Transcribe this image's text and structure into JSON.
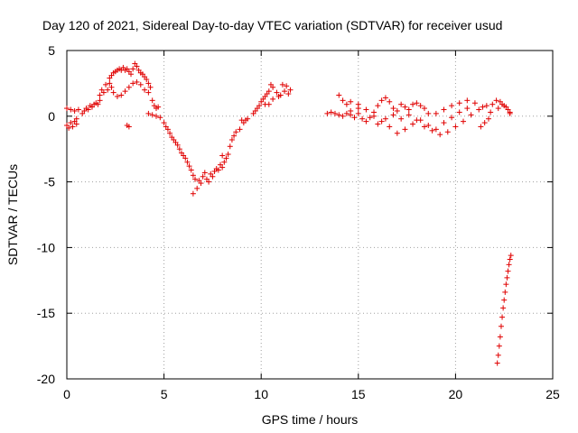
{
  "chart_data": {
    "type": "scatter",
    "title": "Day 120 of 2021, Sidereal Day-to-day VTEC variation (SDTVAR) for receiver usud",
    "xlabel": "GPS time / hours",
    "ylabel": "SDTVAR / TECUs",
    "xlim": [
      0,
      25
    ],
    "ylim": [
      -20,
      5
    ],
    "xticks": [
      0,
      5,
      10,
      15,
      20,
      25
    ],
    "yticks": [
      -20,
      -15,
      -10,
      -5,
      0,
      5
    ],
    "grid": true,
    "marker": "+",
    "color": "#e00000",
    "series": [
      {
        "name": "SDTVAR",
        "points": [
          [
            0.0,
            -0.7
          ],
          [
            0.1,
            -0.9
          ],
          [
            0.2,
            -0.5
          ],
          [
            0.3,
            -0.8
          ],
          [
            0.4,
            -0.4
          ],
          [
            0.5,
            -0.6
          ],
          [
            0.0,
            0.6
          ],
          [
            0.2,
            0.5
          ],
          [
            0.4,
            0.4
          ],
          [
            0.6,
            0.5
          ],
          [
            0.5,
            -0.2
          ],
          [
            0.8,
            0.2
          ],
          [
            0.9,
            0.4
          ],
          [
            1.0,
            0.6
          ],
          [
            1.1,
            0.5
          ],
          [
            1.2,
            0.8
          ],
          [
            1.3,
            0.7
          ],
          [
            1.4,
            0.9
          ],
          [
            1.5,
            1.0
          ],
          [
            1.6,
            0.9
          ],
          [
            1.7,
            1.2
          ],
          [
            1.7,
            1.6
          ],
          [
            1.8,
            2.0
          ],
          [
            1.9,
            1.8
          ],
          [
            2.0,
            2.4
          ],
          [
            2.1,
            2.0
          ],
          [
            2.2,
            2.5
          ],
          [
            2.3,
            2.2
          ],
          [
            2.2,
            2.9
          ],
          [
            2.3,
            3.1
          ],
          [
            2.4,
            3.3
          ],
          [
            2.5,
            3.4
          ],
          [
            2.6,
            3.5
          ],
          [
            2.7,
            3.6
          ],
          [
            2.8,
            3.5
          ],
          [
            2.9,
            3.7
          ],
          [
            3.0,
            3.5
          ],
          [
            3.1,
            3.6
          ],
          [
            3.2,
            3.4
          ],
          [
            2.4,
            1.8
          ],
          [
            2.6,
            1.5
          ],
          [
            2.8,
            1.6
          ],
          [
            3.0,
            1.9
          ],
          [
            3.2,
            2.2
          ],
          [
            3.4,
            2.5
          ],
          [
            3.3,
            3.2
          ],
          [
            3.4,
            3.6
          ],
          [
            3.5,
            4.0
          ],
          [
            3.6,
            3.8
          ],
          [
            3.7,
            3.5
          ],
          [
            3.8,
            3.3
          ],
          [
            3.9,
            3.2
          ],
          [
            4.0,
            3.0
          ],
          [
            4.1,
            2.8
          ],
          [
            4.2,
            2.5
          ],
          [
            4.3,
            2.2
          ],
          [
            3.6,
            2.6
          ],
          [
            3.8,
            2.4
          ],
          [
            4.0,
            2.0
          ],
          [
            4.2,
            1.8
          ],
          [
            4.4,
            1.2
          ],
          [
            4.5,
            0.8
          ],
          [
            4.6,
            0.6
          ],
          [
            4.7,
            0.7
          ],
          [
            3.1,
            -0.7
          ],
          [
            3.2,
            -0.8
          ],
          [
            4.2,
            0.2
          ],
          [
            4.4,
            0.1
          ],
          [
            4.6,
            0.0
          ],
          [
            4.8,
            -0.1
          ],
          [
            5.0,
            -0.5
          ],
          [
            5.1,
            -0.8
          ],
          [
            5.2,
            -1.0
          ],
          [
            5.3,
            -1.3
          ],
          [
            5.4,
            -1.6
          ],
          [
            5.5,
            -1.8
          ],
          [
            5.6,
            -2.0
          ],
          [
            5.7,
            -2.2
          ],
          [
            5.8,
            -2.5
          ],
          [
            5.9,
            -2.8
          ],
          [
            6.0,
            -3.0
          ],
          [
            6.1,
            -3.2
          ],
          [
            6.2,
            -3.5
          ],
          [
            6.3,
            -3.8
          ],
          [
            6.4,
            -4.1
          ],
          [
            6.5,
            -4.5
          ],
          [
            6.6,
            -4.8
          ],
          [
            6.5,
            -5.9
          ],
          [
            6.7,
            -5.5
          ],
          [
            6.8,
            -4.9
          ],
          [
            6.9,
            -5.1
          ],
          [
            7.0,
            -4.6
          ],
          [
            7.1,
            -4.3
          ],
          [
            7.2,
            -4.8
          ],
          [
            7.3,
            -5.0
          ],
          [
            7.4,
            -4.4
          ],
          [
            7.5,
            -4.6
          ],
          [
            7.6,
            -4.2
          ],
          [
            7.7,
            -4.0
          ],
          [
            7.8,
            -4.1
          ],
          [
            7.9,
            -3.7
          ],
          [
            8.0,
            -3.0
          ],
          [
            8.0,
            -3.9
          ],
          [
            8.1,
            -3.5
          ],
          [
            8.2,
            -3.2
          ],
          [
            8.3,
            -2.9
          ],
          [
            8.4,
            -2.3
          ],
          [
            8.5,
            -1.8
          ],
          [
            8.6,
            -1.5
          ],
          [
            8.7,
            -1.2
          ],
          [
            8.9,
            -1.0
          ],
          [
            9.1,
            -0.5
          ],
          [
            9.2,
            -0.3
          ],
          [
            9.0,
            -0.3
          ],
          [
            9.3,
            -0.2
          ],
          [
            9.6,
            0.2
          ],
          [
            9.7,
            0.4
          ],
          [
            9.8,
            0.6
          ],
          [
            9.9,
            0.8
          ],
          [
            10.0,
            1.1
          ],
          [
            10.1,
            1.3
          ],
          [
            10.2,
            1.5
          ],
          [
            10.3,
            1.7
          ],
          [
            10.4,
            1.9
          ],
          [
            10.6,
            2.2
          ],
          [
            10.8,
            1.8
          ],
          [
            11.0,
            1.6
          ],
          [
            11.2,
            1.9
          ],
          [
            11.4,
            1.7
          ],
          [
            10.6,
            1.3
          ],
          [
            10.9,
            1.5
          ],
          [
            11.3,
            2.3
          ],
          [
            11.5,
            2.0
          ],
          [
            10.4,
            0.9
          ],
          [
            10.2,
            0.9
          ],
          [
            10.5,
            2.4
          ],
          [
            11.1,
            2.4
          ],
          [
            13.4,
            0.2
          ],
          [
            13.6,
            0.3
          ],
          [
            13.8,
            0.2
          ],
          [
            14.0,
            0.1
          ],
          [
            14.2,
            0.0
          ],
          [
            14.4,
            0.2
          ],
          [
            14.6,
            0.1
          ],
          [
            14.8,
            -0.1
          ],
          [
            15.0,
            0.2
          ],
          [
            15.2,
            -0.2
          ],
          [
            15.4,
            -0.4
          ],
          [
            15.6,
            -0.1
          ],
          [
            15.8,
            0.3
          ],
          [
            16.0,
            0.8
          ],
          [
            16.2,
            1.2
          ],
          [
            16.4,
            1.4
          ],
          [
            16.6,
            1.1
          ],
          [
            16.8,
            0.6
          ],
          [
            17.0,
            0.4
          ],
          [
            17.2,
            0.9
          ],
          [
            17.4,
            0.7
          ],
          [
            17.6,
            0.5
          ],
          [
            17.8,
            0.9
          ],
          [
            18.0,
            1.0
          ],
          [
            18.2,
            0.8
          ],
          [
            18.4,
            0.6
          ],
          [
            18.6,
            0.2
          ],
          [
            14.6,
            0.4
          ],
          [
            15.0,
            0.6
          ],
          [
            15.4,
            0.5
          ],
          [
            15.8,
            0.0
          ],
          [
            16.2,
            -0.4
          ],
          [
            16.6,
            -0.8
          ],
          [
            17.0,
            -1.3
          ],
          [
            17.4,
            -1.0
          ],
          [
            17.8,
            -0.6
          ],
          [
            18.2,
            -0.3
          ],
          [
            18.6,
            -0.7
          ],
          [
            19.0,
            -1.0
          ],
          [
            19.4,
            -0.5
          ],
          [
            19.8,
            -0.1
          ],
          [
            20.2,
            0.3
          ],
          [
            20.6,
            0.6
          ],
          [
            16.0,
            -0.6
          ],
          [
            16.4,
            -0.2
          ],
          [
            16.8,
            0.1
          ],
          [
            17.2,
            -0.2
          ],
          [
            17.6,
            0.1
          ],
          [
            18.0,
            -0.3
          ],
          [
            18.4,
            -0.8
          ],
          [
            18.8,
            -1.1
          ],
          [
            19.2,
            -1.4
          ],
          [
            19.6,
            -1.2
          ],
          [
            20.0,
            -0.8
          ],
          [
            20.4,
            -0.4
          ],
          [
            20.8,
            0.1
          ],
          [
            21.2,
            0.5
          ],
          [
            21.6,
            0.8
          ],
          [
            14.0,
            1.6
          ],
          [
            14.2,
            1.2
          ],
          [
            14.4,
            0.9
          ],
          [
            14.6,
            1.1
          ],
          [
            15.0,
            0.9
          ],
          [
            19.0,
            0.2
          ],
          [
            19.4,
            0.5
          ],
          [
            19.8,
            0.8
          ],
          [
            20.2,
            1.0
          ],
          [
            20.6,
            1.2
          ],
          [
            21.0,
            1.0
          ],
          [
            21.4,
            0.7
          ],
          [
            21.8,
            0.3
          ],
          [
            22.2,
            0.6
          ],
          [
            22.4,
            0.9
          ],
          [
            22.6,
            0.7
          ],
          [
            22.8,
            0.3
          ],
          [
            21.3,
            -0.8
          ],
          [
            21.5,
            -0.5
          ],
          [
            21.7,
            -0.2
          ],
          [
            21.9,
            0.9
          ],
          [
            22.1,
            1.2
          ],
          [
            22.3,
            1.1
          ],
          [
            22.5,
            0.8
          ],
          [
            22.7,
            0.5
          ],
          [
            22.8,
            0.2
          ],
          [
            22.15,
            -18.8
          ],
          [
            22.2,
            -18.2
          ],
          [
            22.25,
            -17.5
          ],
          [
            22.3,
            -16.8
          ],
          [
            22.35,
            -16.0
          ],
          [
            22.4,
            -15.3
          ],
          [
            22.45,
            -14.6
          ],
          [
            22.5,
            -14.0
          ],
          [
            22.55,
            -13.4
          ],
          [
            22.6,
            -12.8
          ],
          [
            22.65,
            -12.3
          ],
          [
            22.7,
            -11.8
          ],
          [
            22.75,
            -11.3
          ],
          [
            22.8,
            -10.9
          ],
          [
            22.85,
            -10.6
          ]
        ]
      }
    ]
  }
}
